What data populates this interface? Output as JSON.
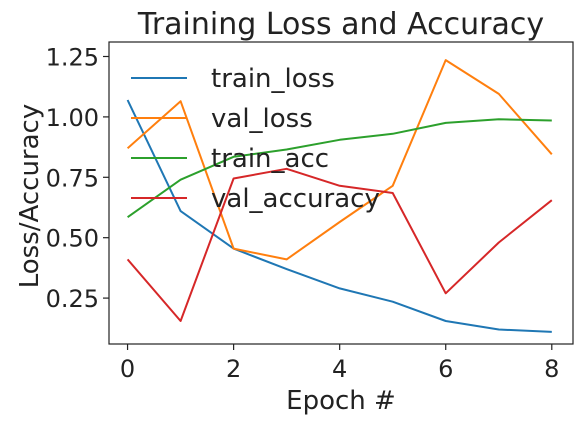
{
  "chart_data": {
    "type": "line",
    "title": "Training Loss and Accuracy",
    "xlabel": "Epoch #",
    "ylabel": "Loss/Accuracy",
    "x": [
      0,
      1,
      2,
      3,
      4,
      5,
      6,
      7,
      8
    ],
    "xlim": [
      -0.35,
      8.4
    ],
    "ylim": [
      0.06,
      1.31
    ],
    "xticks": [
      0,
      2,
      4,
      6,
      8
    ],
    "xtick_labels": [
      "0",
      "2",
      "4",
      "6",
      "8"
    ],
    "yticks": [
      0.25,
      0.5,
      0.75,
      1.0,
      1.25
    ],
    "ytick_labels": [
      "0.25",
      "0.50",
      "0.75",
      "1.00",
      "1.25"
    ],
    "grid": false,
    "legend_position": "upper-left",
    "series": [
      {
        "name": "train_loss",
        "color": "#1f77b4",
        "values": [
          1.07,
          0.61,
          0.455,
          0.37,
          0.29,
          0.235,
          0.155,
          0.12,
          0.11
        ]
      },
      {
        "name": "val_loss",
        "color": "#ff7f0e",
        "values": [
          0.87,
          1.065,
          0.455,
          0.41,
          0.565,
          0.715,
          1.235,
          1.095,
          0.845
        ]
      },
      {
        "name": "train_acc",
        "color": "#2ca02c",
        "values": [
          0.585,
          0.74,
          0.835,
          0.865,
          0.905,
          0.93,
          0.975,
          0.99,
          0.985
        ]
      },
      {
        "name": "val_accuracy",
        "color": "#d62728",
        "values": [
          0.41,
          0.155,
          0.745,
          0.785,
          0.715,
          0.685,
          0.27,
          0.48,
          0.655
        ]
      }
    ]
  }
}
